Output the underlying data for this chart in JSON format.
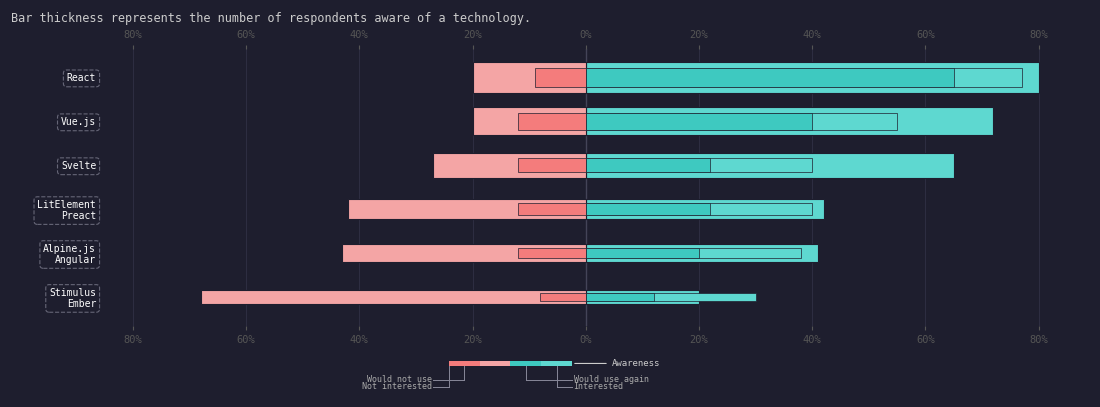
{
  "bg_color": "#1e1e2e",
  "salmon_dark": "#f47c7c",
  "salmon_light": "#f4a5a5",
  "teal_dark": "#3ec9c0",
  "teal_light": "#5ed8d0",
  "title": "Bar thickness represents the number of respondents aware of a technology.",
  "categories": [
    "React",
    "Vue.js",
    "Svelte",
    "LitElement\nPreact",
    "Alpine.js\nAngular",
    "Stimulus\nEmber"
  ],
  "awareness_right": [
    80,
    72,
    65,
    42,
    41,
    20
  ],
  "would_use_again": [
    65,
    40,
    22,
    22,
    20,
    12
  ],
  "interested": [
    12,
    15,
    18,
    18,
    18,
    18
  ],
  "not_interested": [
    20,
    20,
    27,
    42,
    43,
    68
  ],
  "would_not_use": [
    9,
    12,
    12,
    12,
    12,
    8
  ],
  "bar_heights_outer": [
    0.72,
    0.64,
    0.56,
    0.46,
    0.4,
    0.32
  ],
  "bar_heights_inner": [
    0.44,
    0.38,
    0.32,
    0.26,
    0.22,
    0.17
  ],
  "xlim": [
    -85,
    85
  ],
  "xticks": [
    -80,
    -60,
    -40,
    -20,
    0,
    20,
    40,
    60,
    80
  ]
}
